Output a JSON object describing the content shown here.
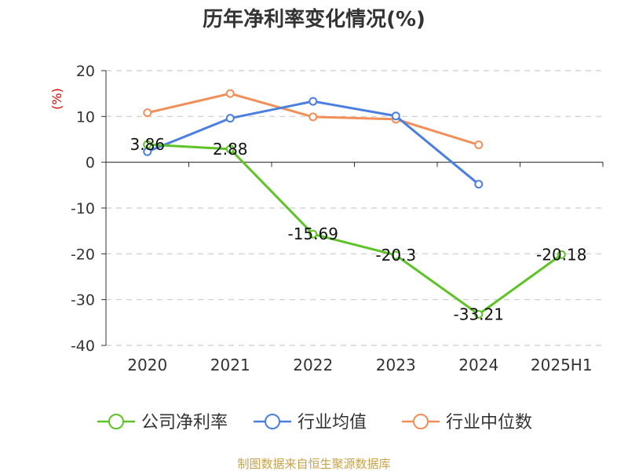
{
  "chart_data": {
    "type": "line",
    "title": "历年净利率变化情况(%)",
    "ylabel": "(%)",
    "xlabel": "",
    "categories": [
      "2020",
      "2021",
      "2022",
      "2023",
      "2024",
      "2025H1"
    ],
    "ylim": [
      -40,
      20
    ],
    "yticks": [
      20,
      10,
      0,
      -10,
      -20,
      -30,
      -40
    ],
    "grid": true,
    "legend_position": "bottom",
    "series": [
      {
        "name": "公司净利率",
        "color": "#5dc326",
        "values": [
          3.86,
          2.88,
          -15.69,
          -20.3,
          -33.21,
          -20.18
        ],
        "labels": [
          "3.86",
          "2.88",
          "-15.69",
          "-20.3",
          "-33.21",
          "-20.18"
        ]
      },
      {
        "name": "行业均值",
        "color": "#4a7fe0",
        "values": [
          2.3,
          9.6,
          13.3,
          10.1,
          -4.8,
          null
        ]
      },
      {
        "name": "行业中位数",
        "color": "#f28e58",
        "values": [
          10.8,
          15.0,
          9.9,
          9.4,
          3.8,
          null
        ]
      }
    ]
  },
  "source": "制图数据来自恒生聚源数据库"
}
